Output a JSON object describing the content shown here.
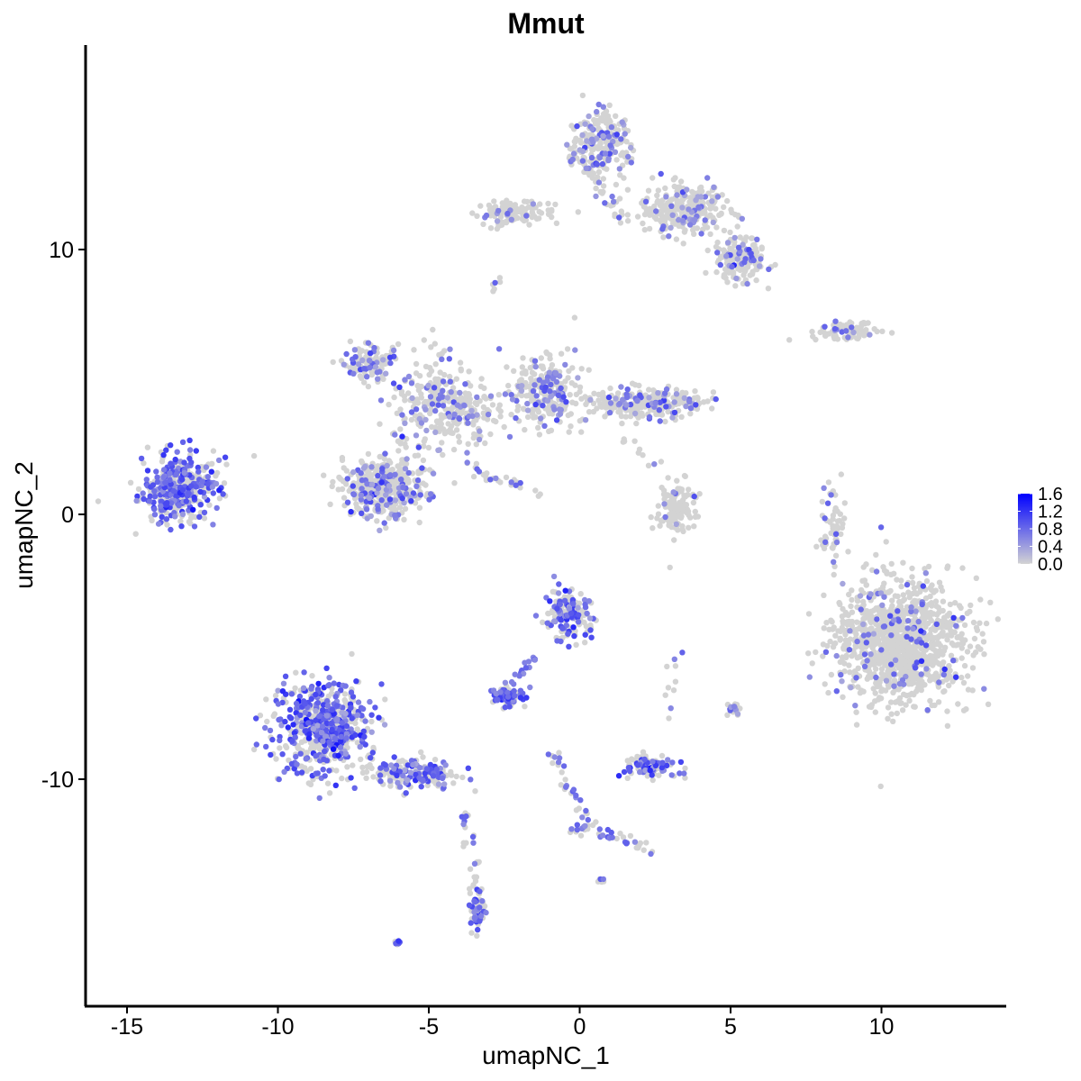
{
  "chart_data": {
    "type": "scatter",
    "title": "Mmut",
    "xlabel": "umapNC_1",
    "ylabel": "umapNC_2",
    "xlim": [
      -16.5,
      14.5
    ],
    "ylim": [
      -18.5,
      17.5
    ],
    "x_ticks": [
      -15,
      -10,
      -5,
      0,
      5,
      10
    ],
    "x_tick_labels": [
      "-15",
      "-10",
      "-5",
      "0",
      "5",
      "10"
    ],
    "y_ticks": [
      -10,
      0,
      10
    ],
    "y_tick_labels": [
      "-10",
      "0",
      "10"
    ],
    "grid": false,
    "legend": {
      "placement": "right",
      "type": "colorbar",
      "min": 0.0,
      "max": 1.6,
      "ticks": [
        0.0,
        0.4,
        0.8,
        1.2,
        1.6
      ],
      "tick_labels": [
        "0.0",
        "0.4",
        "0.8",
        "1.2",
        "1.6"
      ],
      "low_color": "#d3d3d3",
      "high_color": "#0000ff"
    },
    "clusters": [
      {
        "center": [
          -13.3,
          1.0
        ],
        "spread": [
          1.1,
          1.0
        ],
        "n": 420,
        "expr_fraction": 0.85,
        "mean_expr": 0.8
      },
      {
        "center": [
          -8.5,
          -8.0
        ],
        "spread": [
          1.3,
          1.4
        ],
        "n": 650,
        "expr_fraction": 0.8,
        "mean_expr": 0.85
      },
      {
        "center": [
          -5.5,
          -9.8
        ],
        "spread": [
          1.2,
          0.5
        ],
        "n": 180,
        "expr_fraction": 0.75,
        "mean_expr": 0.8
      },
      {
        "center": [
          -3.4,
          -14.8
        ],
        "spread": [
          0.2,
          0.7
        ],
        "n": 70,
        "expr_fraction": 0.8,
        "mean_expr": 0.8
      },
      {
        "center": [
          -6.5,
          1.0
        ],
        "spread": [
          1.1,
          0.9
        ],
        "n": 420,
        "expr_fraction": 0.4,
        "mean_expr": 0.6
      },
      {
        "center": [
          -4.5,
          4.0
        ],
        "spread": [
          1.5,
          1.5
        ],
        "n": 300,
        "expr_fraction": 0.35,
        "mean_expr": 0.6
      },
      {
        "center": [
          -7.0,
          5.8
        ],
        "spread": [
          0.7,
          0.5
        ],
        "n": 120,
        "expr_fraction": 0.5,
        "mean_expr": 0.6
      },
      {
        "center": [
          -1.2,
          4.6
        ],
        "spread": [
          0.9,
          1.1
        ],
        "n": 250,
        "expr_fraction": 0.45,
        "mean_expr": 0.6
      },
      {
        "center": [
          2.2,
          4.2
        ],
        "spread": [
          1.5,
          0.5
        ],
        "n": 260,
        "expr_fraction": 0.35,
        "mean_expr": 0.6
      },
      {
        "center": [
          3.2,
          0.3
        ],
        "spread": [
          0.6,
          0.8
        ],
        "n": 120,
        "expr_fraction": 0.1,
        "mean_expr": 0.5
      },
      {
        "center": [
          0.7,
          14.0
        ],
        "spread": [
          0.8,
          1.0
        ],
        "n": 220,
        "expr_fraction": 0.35,
        "mean_expr": 0.6
      },
      {
        "center": [
          3.5,
          11.5
        ],
        "spread": [
          1.2,
          0.8
        ],
        "n": 280,
        "expr_fraction": 0.25,
        "mean_expr": 0.6
      },
      {
        "center": [
          5.3,
          9.6
        ],
        "spread": [
          0.7,
          0.7
        ],
        "n": 160,
        "expr_fraction": 0.3,
        "mean_expr": 0.6
      },
      {
        "center": [
          -2.2,
          11.4
        ],
        "spread": [
          1.0,
          0.4
        ],
        "n": 120,
        "expr_fraction": 0.15,
        "mean_expr": 0.6
      },
      {
        "center": [
          8.8,
          6.9
        ],
        "spread": [
          1.0,
          0.3
        ],
        "n": 80,
        "expr_fraction": 0.3,
        "mean_expr": 0.7
      },
      {
        "center": [
          10.6,
          -4.8
        ],
        "spread": [
          1.8,
          1.9
        ],
        "n": 1100,
        "expr_fraction": 0.15,
        "mean_expr": 0.7
      },
      {
        "center": [
          -0.4,
          -3.8
        ],
        "spread": [
          0.6,
          0.8
        ],
        "n": 160,
        "expr_fraction": 0.75,
        "mean_expr": 0.85
      },
      {
        "center": [
          -2.4,
          -6.9
        ],
        "spread": [
          0.5,
          0.3
        ],
        "n": 70,
        "expr_fraction": 0.85,
        "mean_expr": 0.9
      },
      {
        "center": [
          2.3,
          -9.5
        ],
        "spread": [
          0.7,
          0.35
        ],
        "n": 110,
        "expr_fraction": 0.7,
        "mean_expr": 0.85
      },
      {
        "center": [
          5.1,
          -7.3
        ],
        "spread": [
          0.2,
          0.3
        ],
        "n": 20,
        "expr_fraction": 0.8,
        "mean_expr": 0.8
      },
      {
        "center": [
          8.5,
          -0.3
        ],
        "spread": [
          0.2,
          1.2
        ],
        "n": 40,
        "expr_fraction": 0.3,
        "mean_expr": 0.6
      },
      {
        "center": [
          -6.0,
          -16.2
        ],
        "spread": [
          0.1,
          0.1
        ],
        "n": 8,
        "expr_fraction": 0.9,
        "mean_expr": 0.9
      },
      {
        "center": [
          0.7,
          -13.8
        ],
        "spread": [
          0.1,
          0.1
        ],
        "n": 6,
        "expr_fraction": 0.8,
        "mean_expr": 0.8
      }
    ],
    "trails": [
      {
        "from": [
          -1.5,
          -5.3
        ],
        "to": [
          -2.4,
          -6.8
        ],
        "n": 25,
        "expr_fraction": 0.8
      },
      {
        "from": [
          -0.8,
          -9.1
        ],
        "to": [
          0.2,
          -11.8
        ],
        "n": 30,
        "expr_fraction": 0.6
      },
      {
        "from": [
          0.2,
          -11.8
        ],
        "to": [
          2.3,
          -12.6
        ],
        "n": 30,
        "expr_fraction": 0.45
      },
      {
        "from": [
          0.2,
          -11.8
        ],
        "to": [
          -0.2,
          -12.0
        ],
        "n": 10,
        "expr_fraction": 0.6
      },
      {
        "from": [
          -4.0,
          -11.0
        ],
        "to": [
          -3.4,
          -13.8
        ],
        "n": 20,
        "expr_fraction": 0.35
      },
      {
        "from": [
          -3.6,
          1.7
        ],
        "to": [
          -1.2,
          0.7
        ],
        "n": 25,
        "expr_fraction": 0.25
      },
      {
        "from": [
          -4.5,
          6.4
        ],
        "to": [
          -4.1,
          3.5
        ],
        "n": 20,
        "expr_fraction": 0.3
      },
      {
        "from": [
          0.0,
          13.5
        ],
        "to": [
          1.5,
          11.0
        ],
        "n": 30,
        "expr_fraction": 0.2
      },
      {
        "from": [
          8.2,
          1.2
        ],
        "to": [
          8.0,
          -1.5
        ],
        "n": 15,
        "expr_fraction": 0.3
      },
      {
        "from": [
          -2.9,
          9.0
        ],
        "to": [
          -2.7,
          8.5
        ],
        "n": 6,
        "expr_fraction": 0.1
      },
      {
        "from": [
          3.0,
          -7.9
        ],
        "to": [
          3.2,
          -5.0
        ],
        "n": 10,
        "expr_fraction": 0.3
      },
      {
        "from": [
          1.5,
          2.8
        ],
        "to": [
          3.0,
          1.5
        ],
        "n": 10,
        "expr_fraction": 0.1
      }
    ]
  }
}
